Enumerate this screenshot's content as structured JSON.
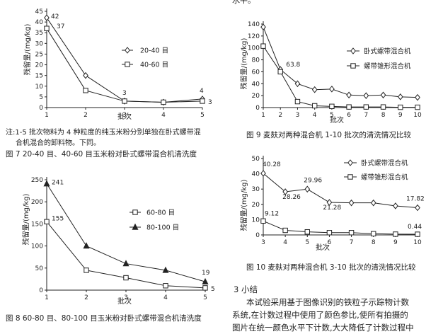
{
  "header": {
    "top_fragment": "水平。"
  },
  "fig7": {
    "note": [
      "注:1-5 批次物料为 4 种粒度的纯玉米粉分别单独在卧式螺带混",
      "合机混合的卸料物。下同。"
    ],
    "caption": "图 7   20-40 目、40-60 目玉米粉对卧式螺带混合机清洗度"
  },
  "fig8": {
    "caption": "图 8   60-80 目、80-100 目玉米粉对卧式螺带混合机清洗度"
  },
  "fig9": {
    "caption": "图 9   麦麸对两种混合机 1-10 批次的清洗情况比较"
  },
  "fig10": {
    "caption": "图 10   麦麸对两种混合机 3-10 批次的清洗情况比较"
  },
  "section": {
    "heading": "3   小结",
    "lines": [
      "本试验采用基于图像识别的铁粒子示踪物计数",
      "系统,在计数过程中使用了颜色参比,使所有拍摄的",
      "图片在统一颜色水平下计数,大大降低了计数过程中"
    ]
  },
  "chart_data": [
    {
      "id": "fig7",
      "type": "line",
      "xlabel": "批次",
      "ylabel": "残留量/(mg/kg)",
      "x": [
        1,
        2,
        3,
        4,
        5
      ],
      "xlim": [
        1,
        5
      ],
      "ylim": [
        0,
        45
      ],
      "xticks": [
        "1",
        "2",
        "3",
        "4",
        "5"
      ],
      "yticks": [
        "0",
        "5",
        "10",
        "15",
        "20",
        "25",
        "30",
        "35",
        "40",
        "45"
      ],
      "series": [
        {
          "name": "20-40 目",
          "marker": "diamond",
          "values": [
            42,
            15,
            3,
            2.5,
            4
          ]
        },
        {
          "name": "40-60 目",
          "marker": "square",
          "values": [
            37,
            8,
            3,
            2.5,
            3
          ]
        }
      ],
      "labels": [
        "42",
        "37",
        "3",
        "4",
        "3"
      ],
      "legend": "top-right",
      "grid": false
    },
    {
      "id": "fig8",
      "type": "line",
      "xlabel": "批次",
      "ylabel": "残留量/(mg/kg)",
      "x": [
        1,
        2,
        3,
        4,
        5
      ],
      "xlim": [
        1,
        5
      ],
      "ylim": [
        0,
        250
      ],
      "xticks": [
        "1",
        "2",
        "3",
        "4",
        "5"
      ],
      "yticks": [
        "0",
        "50",
        "100",
        "150",
        "200",
        "250"
      ],
      "series": [
        {
          "name": "60-80 目",
          "marker": "square",
          "values": [
            155,
            45,
            28,
            10,
            5
          ]
        },
        {
          "name": "80-100 目",
          "marker": "triangle",
          "values": [
            241,
            100,
            60,
            45,
            19
          ]
        }
      ],
      "labels": [
        "241",
        "155",
        "19",
        "5"
      ],
      "legend": "center-right",
      "grid": false
    },
    {
      "id": "fig9",
      "type": "line",
      "xlabel": "批次",
      "ylabel": "残留量/(mg/kg)",
      "x": [
        1,
        2,
        3,
        4,
        5,
        6,
        7,
        8,
        9,
        10
      ],
      "xlim": [
        1,
        10
      ],
      "ylim": [
        0,
        140
      ],
      "xticks": [
        "1",
        "2",
        "3",
        "4",
        "5",
        "6",
        "7",
        "8",
        "9",
        "10"
      ],
      "yticks": [
        "0",
        "20",
        "40",
        "60",
        "80",
        "100",
        "120",
        "140"
      ],
      "series": [
        {
          "name": "卧式螺带混合机",
          "marker": "diamond",
          "values": [
            135,
            63.8,
            40,
            30,
            31,
            21,
            20,
            21,
            18,
            17
          ]
        },
        {
          "name": "螺带锥形混合机",
          "marker": "square",
          "values": [
            103,
            60,
            10,
            3,
            2,
            1,
            1,
            1,
            0.5,
            0.5
          ]
        }
      ],
      "labels": [
        "63.8"
      ],
      "legend": "top-right",
      "grid": false
    },
    {
      "id": "fig10",
      "type": "line",
      "xlabel": "批次",
      "ylabel": "残留量/(mg/kg)",
      "x": [
        3,
        4,
        5,
        6,
        7,
        8,
        9,
        10
      ],
      "xlim": [
        3,
        10
      ],
      "ylim": [
        0,
        50
      ],
      "xticks": [
        "3",
        "4",
        "5",
        "6",
        "7",
        "8",
        "9",
        "10"
      ],
      "yticks": [
        "0",
        "10",
        "20",
        "30",
        "40",
        "50"
      ],
      "series": [
        {
          "name": "卧式螺带混合机",
          "marker": "diamond",
          "values": [
            40.28,
            28.26,
            29.96,
            21.28,
            21,
            21,
            19,
            17.82
          ]
        },
        {
          "name": "螺带锥形混合机",
          "marker": "square",
          "values": [
            9.12,
            3,
            2,
            1.5,
            1.5,
            0.8,
            0.5,
            0.44
          ]
        }
      ],
      "labels": [
        "40.28",
        "28.26",
        "29.96",
        "21.28",
        "17.82",
        "9.12",
        "0.44"
      ],
      "legend": "top-right",
      "grid": false
    }
  ]
}
